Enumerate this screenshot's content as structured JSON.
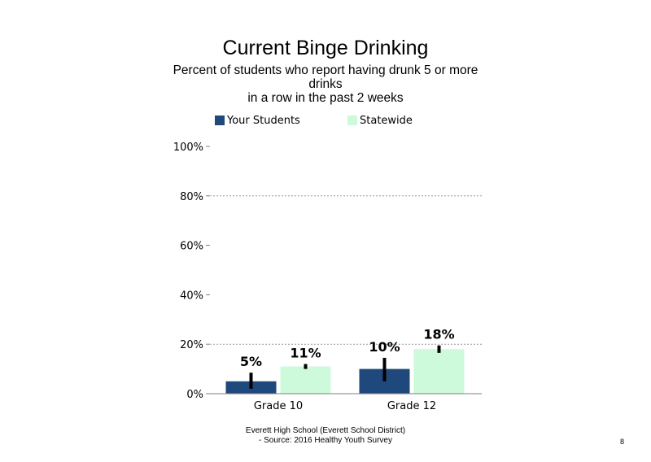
{
  "slide": {
    "title": "Current Binge Drinking",
    "subtitle": "Percent of students  who report having drunk 5 or more drinks\nin a row in the past 2 weeks",
    "footer_line1": "Everett High  School (Everett School District)",
    "footer_line2": "- Source: 2016 Healthy  Youth Survey",
    "page_number": "8"
  },
  "chart_data": {
    "type": "bar",
    "title": "Current Binge Drinking",
    "categories": [
      "Grade 10",
      "Grade 12"
    ],
    "series": [
      {
        "name": "Your Students",
        "color": "#1f497d",
        "values": [
          5,
          10
        ],
        "labels": [
          "5%",
          "10%"
        ],
        "ci_low": [
          2,
          5
        ],
        "ci_high": [
          8.5,
          14.5
        ]
      },
      {
        "name": "Statewide",
        "color": "#ccfadb",
        "values": [
          11,
          18
        ],
        "labels": [
          "11%",
          "18%"
        ],
        "ci_low": [
          10,
          16.5
        ],
        "ci_high": [
          12,
          19.5
        ]
      }
    ],
    "y_ticks": [
      "0%",
      "20%",
      "40%",
      "60%",
      "80%",
      "100%"
    ],
    "ylim": [
      0,
      100
    ],
    "gridlines_at": [
      20,
      80
    ],
    "legend_position": "top",
    "error_bars": true
  }
}
